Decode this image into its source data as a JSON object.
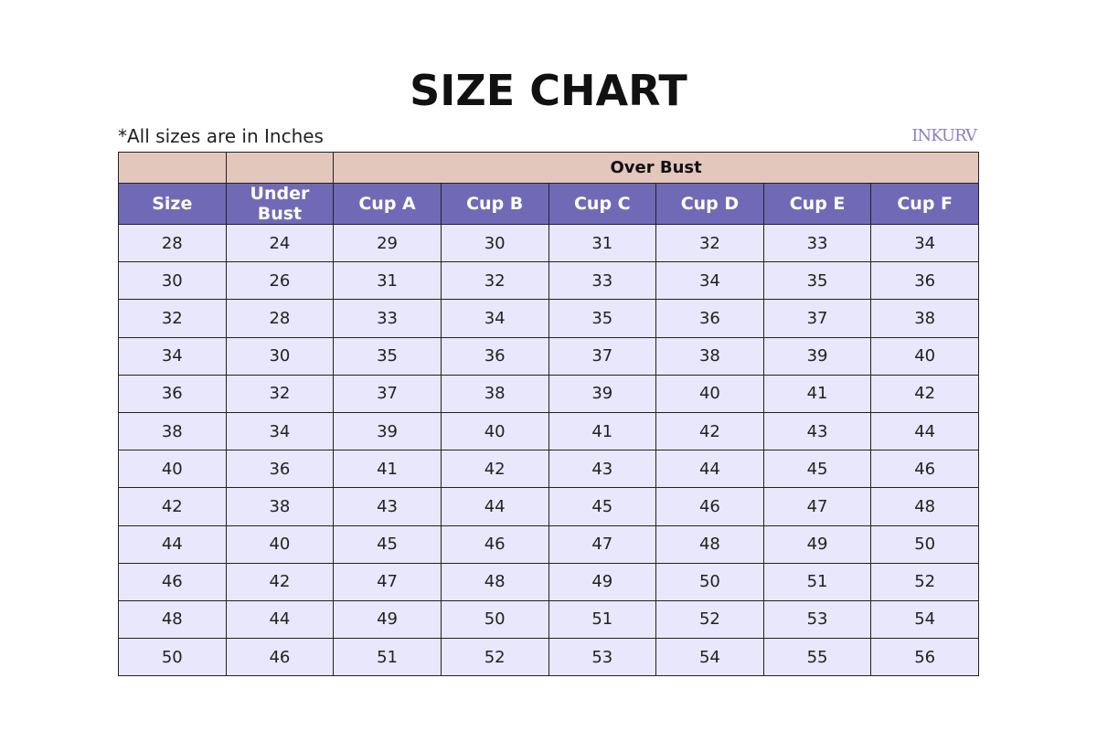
{
  "title": "SIZE CHART",
  "note": "*All sizes are in Inches",
  "logo": "INKURV",
  "colors": {
    "group_header": "#e4c7bc",
    "column_header": "#706ab6",
    "row": "#e8e7fb"
  },
  "group_header": "Over Bust",
  "columns": [
    "Size",
    "Under Bust",
    "Cup A",
    "Cup B",
    "Cup C",
    "Cup D",
    "Cup E",
    "Cup F"
  ],
  "rows": [
    [
      "28",
      "24",
      "29",
      "30",
      "31",
      "32",
      "33",
      "34"
    ],
    [
      "30",
      "26",
      "31",
      "32",
      "33",
      "34",
      "35",
      "36"
    ],
    [
      "32",
      "28",
      "33",
      "34",
      "35",
      "36",
      "37",
      "38"
    ],
    [
      "34",
      "30",
      "35",
      "36",
      "37",
      "38",
      "39",
      "40"
    ],
    [
      "36",
      "32",
      "37",
      "38",
      "39",
      "40",
      "41",
      "42"
    ],
    [
      "38",
      "34",
      "39",
      "40",
      "41",
      "42",
      "43",
      "44"
    ],
    [
      "40",
      "36",
      "41",
      "42",
      "43",
      "44",
      "45",
      "46"
    ],
    [
      "42",
      "38",
      "43",
      "44",
      "45",
      "46",
      "47",
      "48"
    ],
    [
      "44",
      "40",
      "45",
      "46",
      "47",
      "48",
      "49",
      "50"
    ],
    [
      "46",
      "42",
      "47",
      "48",
      "49",
      "50",
      "51",
      "52"
    ],
    [
      "48",
      "44",
      "49",
      "50",
      "51",
      "52",
      "53",
      "54"
    ],
    [
      "50",
      "46",
      "51",
      "52",
      "53",
      "54",
      "55",
      "56"
    ]
  ]
}
